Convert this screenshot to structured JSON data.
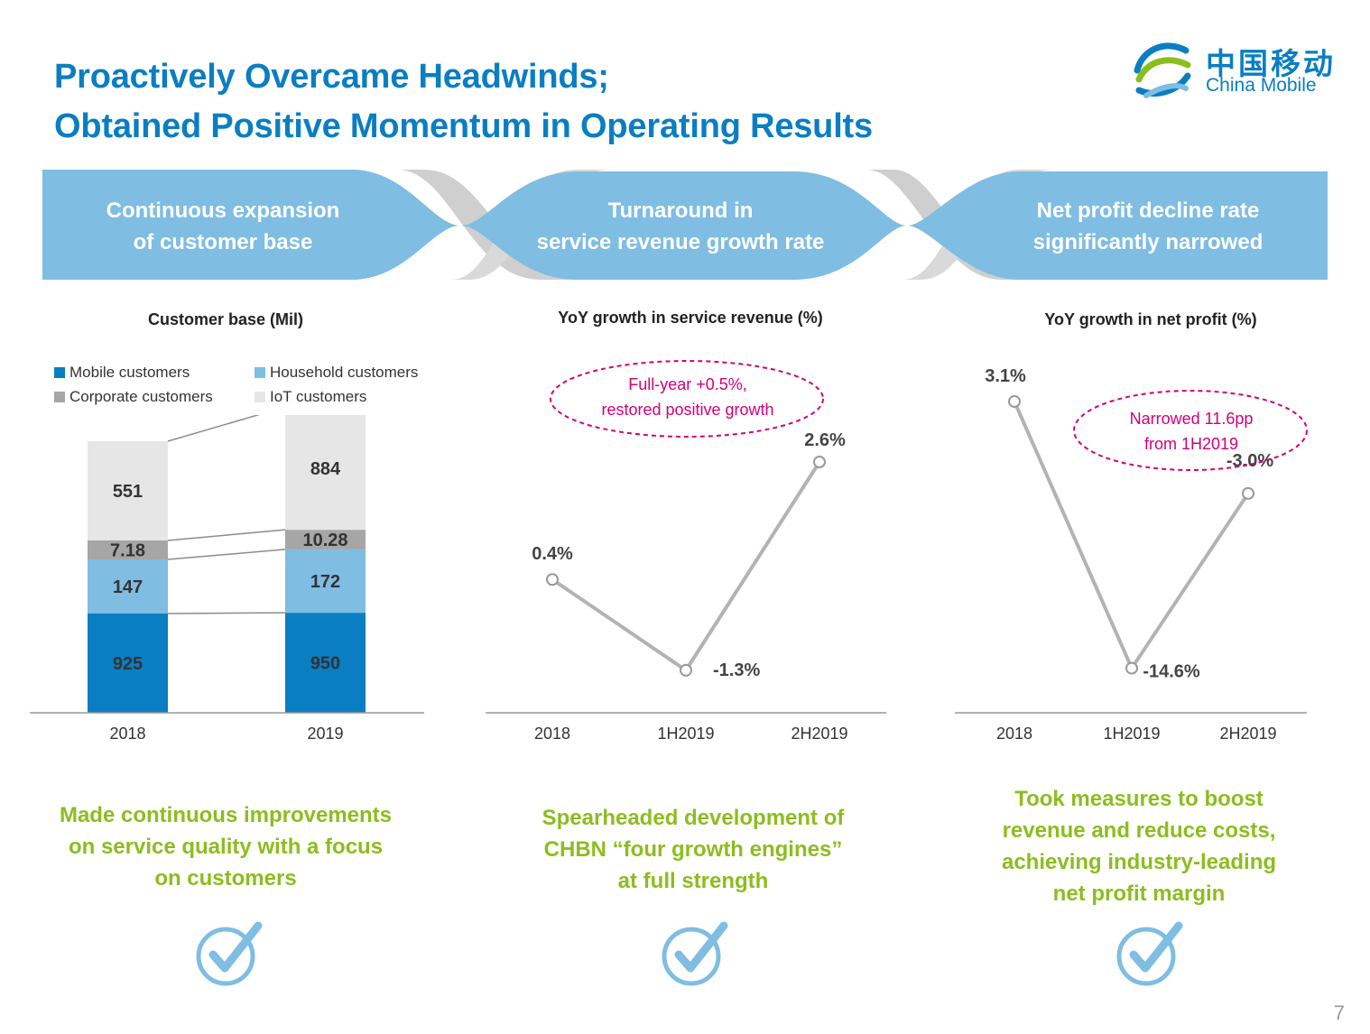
{
  "title_line1": "Proactively Overcame Headwinds;",
  "title_line2": "Obtained Positive Momentum in Operating Results",
  "logo": {
    "cn": "中国移动",
    "en": "China Mobile"
  },
  "banners": [
    {
      "line1": "Continuous expansion",
      "line2": "of customer base"
    },
    {
      "line1": "Turnaround in",
      "line2": "service revenue growth rate"
    },
    {
      "line1": "Net profit decline rate",
      "line2": "significantly narrowed"
    }
  ],
  "colors": {
    "brand": "#0a7ec2",
    "banner": "#7fbde3",
    "mobile": "#0a7ec2",
    "household": "#7fbde3",
    "corporate": "#a6a6a6",
    "iot": "#e6e6e6",
    "green": "#8cbd1f",
    "callout": "#d1007a"
  },
  "chart_data": [
    {
      "type": "bar",
      "stacked": true,
      "title": "Customer base (Mil)",
      "categories": [
        "2018",
        "2019"
      ],
      "series": [
        {
          "name": "Mobile customers",
          "values": [
            925,
            950
          ]
        },
        {
          "name": "Household customers",
          "values": [
            147,
            172
          ]
        },
        {
          "name": "Corporate customers",
          "values": [
            "7.18",
            "10.28"
          ]
        },
        {
          "name": "IoT customers",
          "values": [
            551,
            884
          ]
        }
      ],
      "legend_position": "top"
    },
    {
      "type": "line",
      "title": "YoY growth in service revenue  (%)",
      "categories": [
        "2018",
        "1H2019",
        "2H2019"
      ],
      "values": [
        0.4,
        -1.3,
        2.6
      ],
      "labels": [
        "0.4%",
        "-1.3%",
        "2.6%"
      ],
      "annotation": {
        "line1": "Full-year +0.5%,",
        "line2": "restored positive growth"
      }
    },
    {
      "type": "line",
      "title": "YoY growth in net profit (%)",
      "categories": [
        "2018",
        "1H2019",
        "2H2019"
      ],
      "values": [
        3.1,
        -14.6,
        -3.0
      ],
      "labels": [
        "3.1%",
        "-14.6%",
        "-3.0%"
      ],
      "annotation": {
        "line1": "Narrowed 11.6pp",
        "line2": "from 1H2019"
      }
    }
  ],
  "bottom_text": [
    {
      "line1": "Made continuous improvements",
      "line2": "on service quality with a  focus",
      "line3": "on customers"
    },
    {
      "line1": "Spearheaded development of",
      "line2": "CHBN “four growth engines”",
      "line3": "at full strength"
    },
    {
      "line1": "Took measures to boost",
      "line2": "revenue and reduce costs,",
      "line3": "achieving industry-leading",
      "line4": "net profit margin"
    }
  ],
  "check_icons": [
    "check-circle-icon",
    "check-circle-icon",
    "check-circle-icon"
  ],
  "page_number": "7"
}
